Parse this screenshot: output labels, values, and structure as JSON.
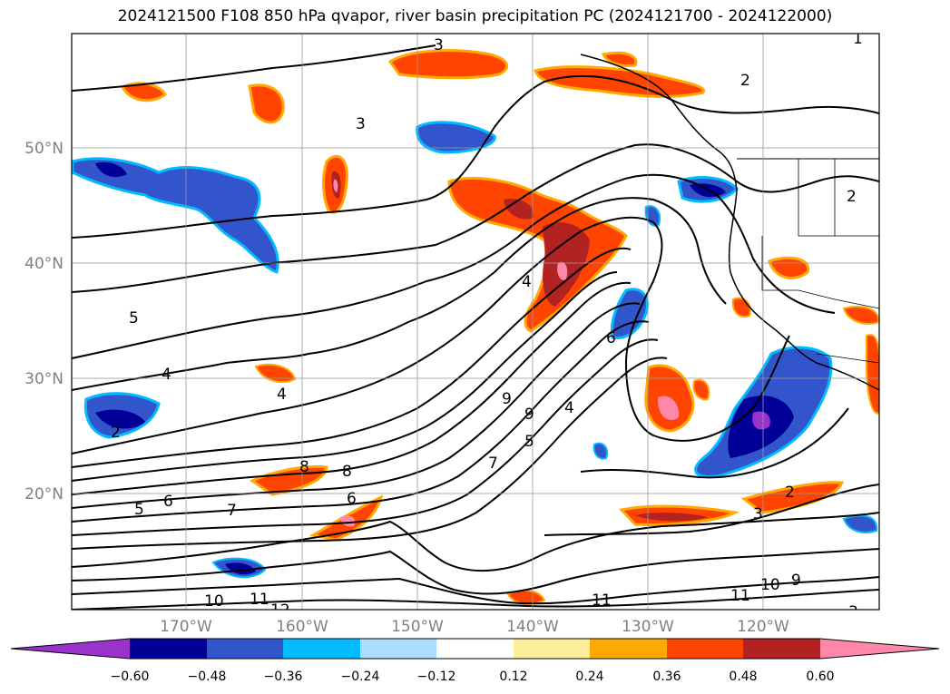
{
  "title": "2024121500 F108 850 hPa qvapor, river basin precipitation PC (2024121700 - 2024122000)",
  "lat_labels": [
    "50°N",
    "40°N",
    "30°N",
    "20°N"
  ],
  "lon_labels": [
    "170°W",
    "160°W",
    "150°W",
    "140°W",
    "130°W",
    "120°W"
  ],
  "colorbar": {
    "tick_labels": [
      "−0.60",
      "−0.48",
      "−0.36",
      "−0.24",
      "−0.12",
      "0.12",
      "0.24",
      "0.36",
      "0.48",
      "0.60"
    ],
    "colors": [
      "#9933cc",
      "#000099",
      "#3355cc",
      "#00bbff",
      "#aaddff",
      "#ffffff",
      "#ffee99",
      "#ffaa00",
      "#ff4400",
      "#b22222",
      "#ff88aa"
    ]
  },
  "contour_labels": [
    "3",
    "3",
    "2",
    "1",
    "2",
    "4",
    "5",
    "4",
    "4",
    "6",
    "5",
    "6",
    "7",
    "8",
    "9",
    "8",
    "9",
    "7",
    "6",
    "5",
    "4",
    "3",
    "2",
    "10",
    "11",
    "12",
    "11",
    "10",
    "9",
    "11",
    "2",
    "3"
  ]
}
